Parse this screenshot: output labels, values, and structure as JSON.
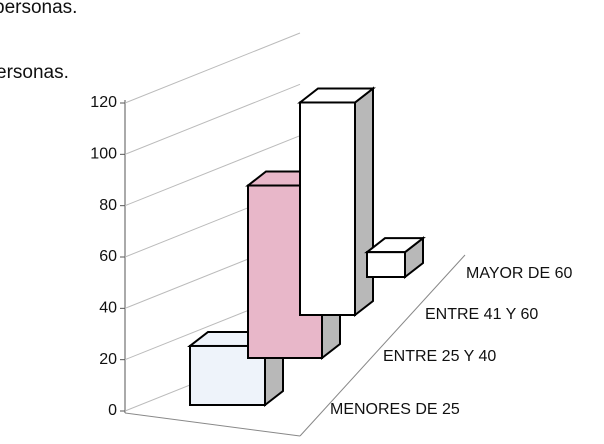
{
  "header_lines": [
    "personas.",
    "ersonas."
  ],
  "chart_data": {
    "type": "bar3d",
    "categories": [
      "MENORES DE 25",
      "ENTRE 25 Y 40",
      "ENTRE 41 Y 60",
      "MAYOR DE 60"
    ],
    "values": [
      23,
      70,
      90,
      11
    ],
    "colors": [
      "#eef3fa",
      "#e8b7c9",
      "#ffffff",
      "#ffffff"
    ],
    "ylim": [
      0,
      120
    ],
    "yticks": [
      0,
      20,
      40,
      60,
      80,
      100,
      120
    ],
    "grid": true
  }
}
